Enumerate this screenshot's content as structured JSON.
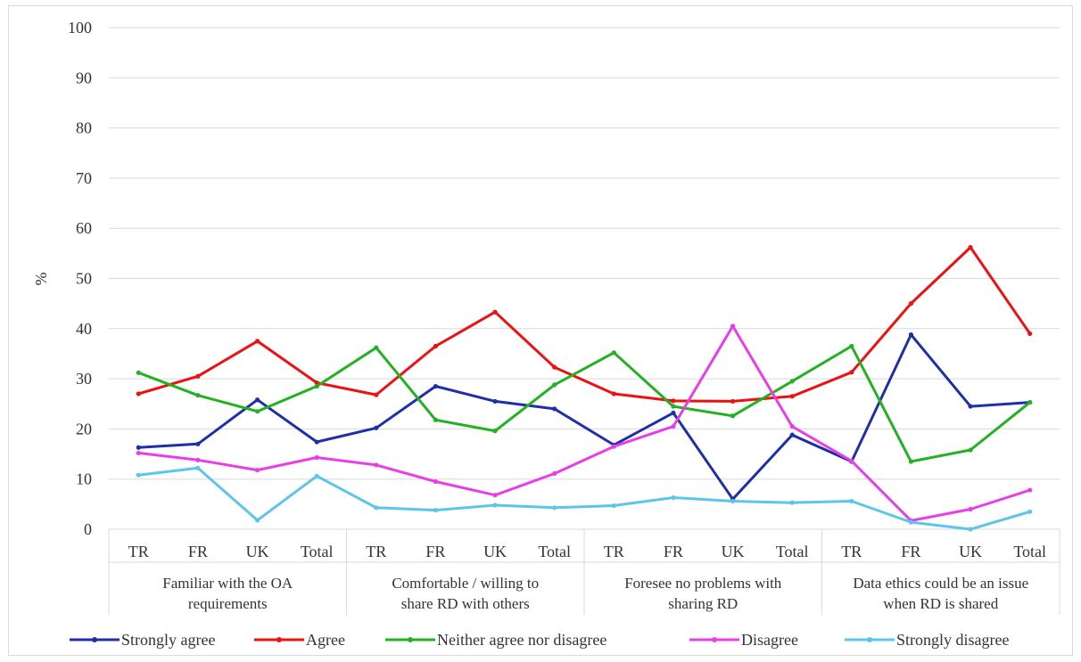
{
  "chart_data": {
    "type": "line",
    "ylabel": "%",
    "xlabel": "",
    "ylim": [
      0,
      100
    ],
    "yticks": [
      0,
      10,
      20,
      30,
      40,
      50,
      60,
      70,
      80,
      90,
      100
    ],
    "grid": true,
    "legend_position": "bottom",
    "groups": [
      {
        "label": "Familiar with the OA requirements",
        "lines": [
          "Familiar with the OA",
          "requirements"
        ]
      },
      {
        "label": "Comfortable / willing to share RD with others",
        "lines": [
          "Comfortable / willing to",
          "share RD with others"
        ]
      },
      {
        "label": "Foresee no problems with sharing RD",
        "lines": [
          "Foresee no problems with",
          "sharing RD"
        ]
      },
      {
        "label": "Data ethics could be an issue when RD is shared",
        "lines": [
          "Data ethics could be an issue",
          "when RD is shared"
        ]
      }
    ],
    "categories": [
      "TR",
      "FR",
      "UK",
      "Total",
      "TR",
      "FR",
      "UK",
      "Total",
      "TR",
      "FR",
      "UK",
      "Total",
      "TR",
      "FR",
      "UK",
      "Total"
    ],
    "series": [
      {
        "name": "Strongly agree",
        "color": "#1f2fa8",
        "values": [
          16.3,
          17,
          25.8,
          17.4,
          20.2,
          28.5,
          25.5,
          24,
          16.8,
          23.2,
          6,
          18.8,
          13.5,
          38.8,
          24.5,
          25.3
        ]
      },
      {
        "name": "Agree",
        "color": "#ee1111",
        "values": [
          27,
          30.5,
          37.5,
          29.2,
          26.8,
          36.5,
          43.3,
          32.3,
          27,
          25.6,
          25.5,
          26.5,
          31.3,
          45,
          56.2,
          39
        ]
      },
      {
        "name": "Neither agree nor disagree",
        "color": "#21b121",
        "values": [
          31.2,
          26.7,
          23.5,
          28.5,
          36.2,
          21.8,
          19.6,
          28.8,
          35.2,
          24.5,
          22.6,
          29.5,
          36.5,
          13.5,
          15.8,
          25.3
        ]
      },
      {
        "name": "Disagree",
        "color": "#e83ee8",
        "values": [
          15.2,
          13.8,
          11.8,
          14.3,
          12.8,
          9.5,
          6.8,
          11.1,
          16.5,
          20.5,
          40.5,
          20.5,
          13.6,
          1.7,
          4,
          7.8
        ]
      },
      {
        "name": "Strongly disagree",
        "color": "#5cc6ea",
        "values": [
          10.8,
          12.2,
          1.8,
          10.6,
          4.3,
          3.8,
          4.8,
          4.3,
          4.7,
          6.3,
          5.6,
          5.3,
          5.6,
          1.4,
          0,
          3.5
        ]
      }
    ]
  }
}
